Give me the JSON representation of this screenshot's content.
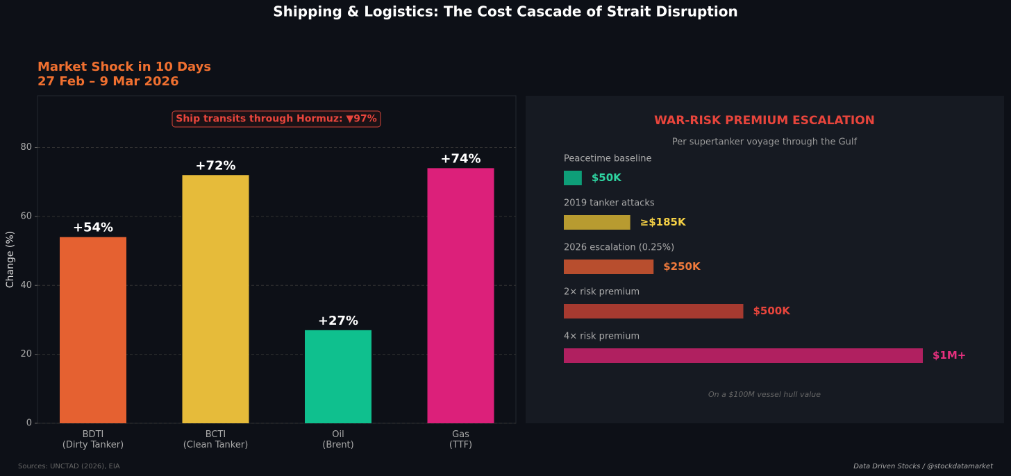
{
  "title": "Shipping & Logistics: The Cost Cascade of Strait Disruption",
  "chart_data": [
    {
      "type": "bar",
      "title": "Market Shock in 10 Days",
      "subtitle": "27 Feb – 9 Mar 2026",
      "ylabel": "Change (%)",
      "annotation": "Ship transits through Hormuz: ▼97%",
      "categories": [
        "BDTI\n(Dirty Tanker)",
        "BCTI\n(Clean Tanker)",
        "Oil\n(Brent)",
        "Gas\n(TTF)"
      ],
      "values": [
        54,
        72,
        27,
        74
      ],
      "value_labels": [
        "+54%",
        "+72%",
        "+27%",
        "+74%"
      ],
      "colors": [
        "#e56131",
        "#e6bb3a",
        "#0fc08e",
        "#dc207a"
      ],
      "ylim": [
        0,
        95
      ],
      "yticks": [
        0,
        20,
        40,
        60,
        80
      ],
      "grid": true
    },
    {
      "type": "hbar",
      "title": "WAR-RISK PREMIUM ESCALATION",
      "subtitle": "Per supertanker voyage through the Gulf",
      "note": "On a $100M vessel hull value",
      "categories": [
        "Peacetime baseline",
        "2019 tanker attacks",
        "2026 escalation (0.25%)",
        "2× risk premium",
        "4× risk premium"
      ],
      "values": [
        50000,
        185000,
        250000,
        500000,
        1000000
      ],
      "value_labels": [
        "$50K",
        "≥$185K",
        "$250K",
        "$500K",
        "$1M+"
      ],
      "colors": [
        "#0e9e78",
        "#b89b30",
        "#b84e2e",
        "#a63a30",
        "#b02060"
      ],
      "label_colors": [
        "#2ed3a0",
        "#f3cf45",
        "#f07a3c",
        "#e8453c",
        "#e8307f"
      ],
      "xlim": [
        0,
        1000000
      ]
    }
  ],
  "footer": {
    "source": "Sources: UNCTAD (2026), EIA",
    "credit": "Data Driven Stocks / @stockdatamarket"
  }
}
